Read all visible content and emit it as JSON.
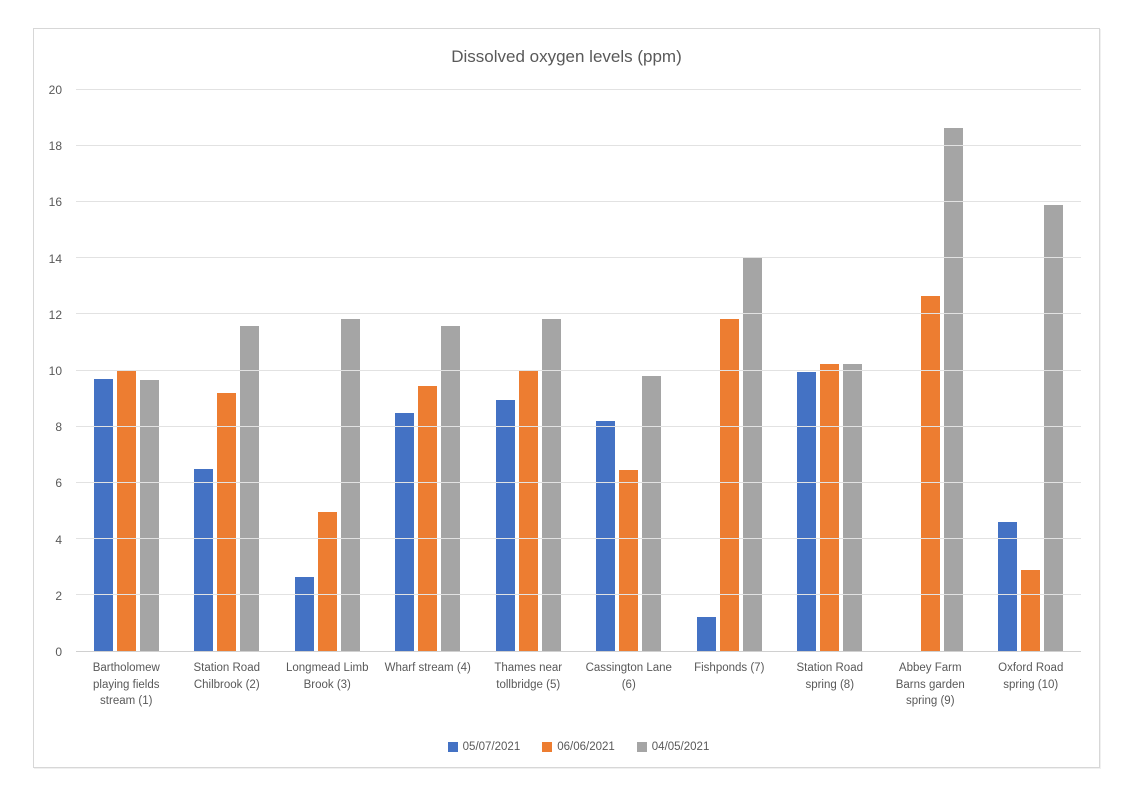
{
  "chart_data": {
    "type": "bar",
    "title": "Dissolved oxygen levels (ppm)",
    "xlabel": "",
    "ylabel": "",
    "ylim": [
      0,
      20
    ],
    "y_ticks": [
      0,
      2,
      4,
      6,
      8,
      10,
      12,
      14,
      16,
      18,
      20
    ],
    "grid": true,
    "legend_position": "bottom",
    "categories": [
      "Bartholomew playing fields stream (1)",
      "Station Road Chilbrook (2)",
      "Longmead Limb Brook (3)",
      "Wharf stream (4)",
      "Thames near tollbridge (5)",
      "Cassington Lane (6)",
      "Fishponds (7)",
      "Station Road spring (8)",
      "Abbey Farm Barns garden spring (9)",
      "Oxford Road spring (10)"
    ],
    "series": [
      {
        "name": "05/07/2021",
        "color": "#4472C4",
        "values": [
          9.7,
          6.5,
          2.65,
          8.5,
          8.95,
          8.2,
          1.2,
          9.95,
          0,
          4.6
        ]
      },
      {
        "name": "06/06/2021",
        "color": "#ED7D31",
        "values": [
          10.0,
          9.2,
          4.95,
          9.45,
          10.0,
          6.45,
          11.85,
          10.25,
          12.65,
          2.9
        ]
      },
      {
        "name": "04/05/2021",
        "color": "#A5A5A5",
        "values": [
          9.65,
          11.6,
          11.85,
          11.6,
          11.85,
          9.8,
          14.05,
          10.25,
          18.65,
          15.9
        ]
      }
    ],
    "colors": {
      "gridline": "#e2e2e2",
      "axis_line": "#d0d0d0",
      "text": "#595959",
      "background": "#ffffff",
      "frame_border": "#d7d7d7"
    }
  }
}
